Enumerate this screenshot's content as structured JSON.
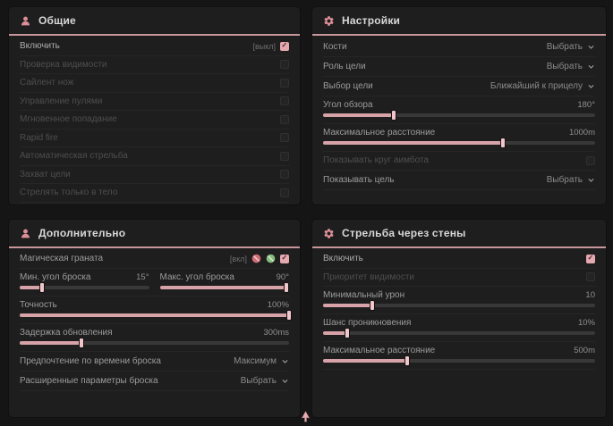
{
  "theme": {
    "page_bg": "#151515",
    "panel_bg": "#1e1e1e",
    "accent_line": "#c9969c",
    "slider_fill": "#d8a3a8",
    "checkbox_checked": "#e5a9b0",
    "icon_pink": "#dd8f98",
    "ban_red": "#cf6d77",
    "ban_green": "#86bd7e"
  },
  "icons": {
    "general_header": "person-icon",
    "settings_header": "gear-icon",
    "additional_header": "person-icon",
    "walls_header": "gear-icon",
    "grenade_red": "ban-red-icon",
    "grenade_green": "ban-green-icon",
    "cursor": "mouse-cursor"
  },
  "general": {
    "title": "Общие",
    "rows": [
      {
        "label": "Включить",
        "keybind": "[выкл]",
        "checked": true
      },
      {
        "label": "Проверка видимости",
        "checked": false
      },
      {
        "label": "Сайлент нож",
        "checked": false
      },
      {
        "label": "Управление пулями",
        "checked": false
      },
      {
        "label": "Мгновенное попадание",
        "checked": false
      },
      {
        "label": "Rapid fire",
        "checked": false
      },
      {
        "label": "Автоматическая стрельба",
        "checked": false
      },
      {
        "label": "Захват цели",
        "checked": false
      },
      {
        "label": "Стрелять только в тело",
        "checked": false
      }
    ]
  },
  "settings": {
    "title": "Настройки",
    "bones": {
      "label": "Кости",
      "value": "Выбрать"
    },
    "target_role": {
      "label": "Роль цели",
      "value": "Выбрать"
    },
    "target_pick": {
      "label": "Выбор цели",
      "value": "Ближайший к прицелу"
    },
    "fov": {
      "label": "Угол обзора",
      "value": "180°",
      "fill": 26
    },
    "max_distance": {
      "label": "Максимальное расстояние",
      "value": "1000m",
      "fill": 66
    },
    "show_circle": {
      "label": "Показывать круг аимбота",
      "checked": false
    },
    "show_target": {
      "label": "Показывать цель",
      "value": "Выбрать"
    }
  },
  "additional": {
    "title": "Дополнительно",
    "magic_grenade": {
      "label": "Магическая граната",
      "keybind": "[вкл]",
      "checked": true
    },
    "min_throw_angle": {
      "label": "Мин. угол броска",
      "value": "15°",
      "fill": 17
    },
    "max_throw_angle": {
      "label": "Макс. угол броска",
      "value": "90°",
      "fill": 98
    },
    "accuracy": {
      "label": "Точность",
      "value": "100%",
      "fill": 100
    },
    "update_delay": {
      "label": "Задержка обновления",
      "value": "300ms",
      "fill": 23
    },
    "throw_time_pref": {
      "label": "Предпочтение по времени броска",
      "value": "Максимум"
    },
    "advanced_throw": {
      "label": "Расширенные параметры броска",
      "value": "Выбрать"
    }
  },
  "walls": {
    "title": "Стрельба через стены",
    "enable": {
      "label": "Включить",
      "checked": true
    },
    "visibility_priority": {
      "label": "Приоритет видимости",
      "checked": false
    },
    "min_damage": {
      "label": "Минимальный урон",
      "value": "10",
      "fill": 18
    },
    "penetration_chance": {
      "label": "Шанс проникновения",
      "value": "10%",
      "fill": 9
    },
    "max_distance": {
      "label": "Максимальное расстояние",
      "value": "500m",
      "fill": 31
    }
  }
}
